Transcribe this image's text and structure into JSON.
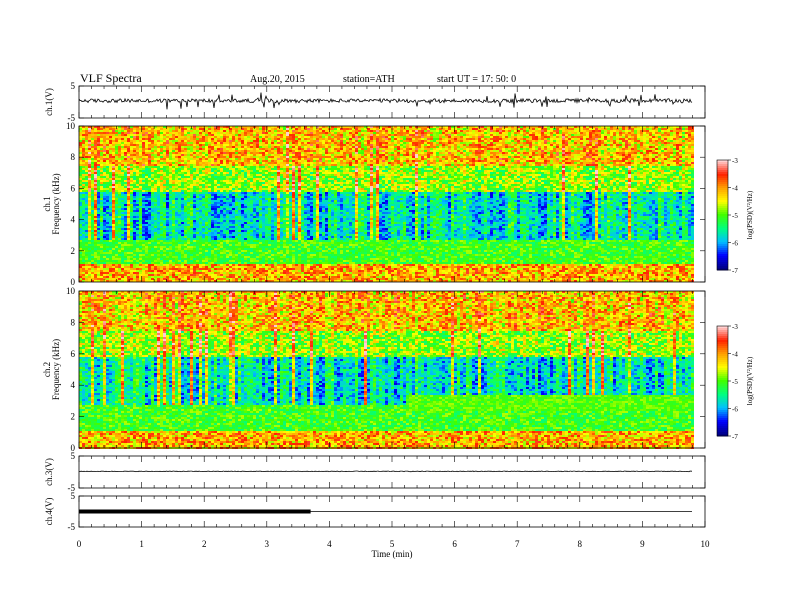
{
  "header": {
    "title": "VLF  Spectra",
    "date": "Aug.20, 2015",
    "station": "station=ATH",
    "start": "start  UT  =   17: 50: 0"
  },
  "chart_data": {
    "type": "heatmap",
    "x_axis": {
      "label": "Time  (min)",
      "range": [
        0,
        10
      ],
      "ticks": [
        "0",
        "1",
        "2",
        "3",
        "4",
        "5",
        "6",
        "7",
        "8",
        "9",
        "10"
      ]
    },
    "panels": [
      {
        "kind": "line",
        "ylabel": "ch.1(V)",
        "yrange": [
          -5,
          5
        ],
        "yticks": [
          "5",
          "-5"
        ],
        "baseline": 0.4,
        "noise": "high",
        "end_min": 9.8
      },
      {
        "kind": "spectrogram",
        "channel": "ch.1",
        "ylabel": "Frequency  (kHz)",
        "yrange": [
          0,
          10
        ],
        "yticks": [
          "0",
          "2",
          "4",
          "6",
          "8",
          "10"
        ],
        "end_min": 9.8
      },
      {
        "kind": "spectrogram",
        "channel": "ch.2",
        "ylabel": "Frequency  (kHz)",
        "yrange": [
          0,
          10
        ],
        "yticks": [
          "0",
          "2",
          "4",
          "6",
          "8",
          "10"
        ],
        "end_min": 9.8
      },
      {
        "kind": "line",
        "ylabel": "ch.3(V)",
        "yrange": [
          -5,
          5
        ],
        "yticks": [
          "5",
          "-5"
        ],
        "baseline": 0.2,
        "noise": "low",
        "end_min": 9.8
      },
      {
        "kind": "line",
        "ylabel": "ch.4(V)",
        "yrange": [
          -5,
          5
        ],
        "yticks": [
          "5",
          "-5"
        ],
        "baseline": 0.0,
        "noise": "flat",
        "pulse_until_min": 3.7,
        "end_min": 9.8
      }
    ],
    "colorbar": {
      "label": "log(PSD)(V²/Hz)",
      "range": [
        -7,
        -3
      ],
      "ticks": [
        "-3",
        "-4",
        "-5",
        "-6",
        "-7"
      ],
      "colors": [
        "#000080",
        "#0000ff",
        "#00bfff",
        "#00ff80",
        "#40ff00",
        "#ffff00",
        "#ffa000",
        "#ff2000",
        "#ffd0d0"
      ]
    }
  }
}
